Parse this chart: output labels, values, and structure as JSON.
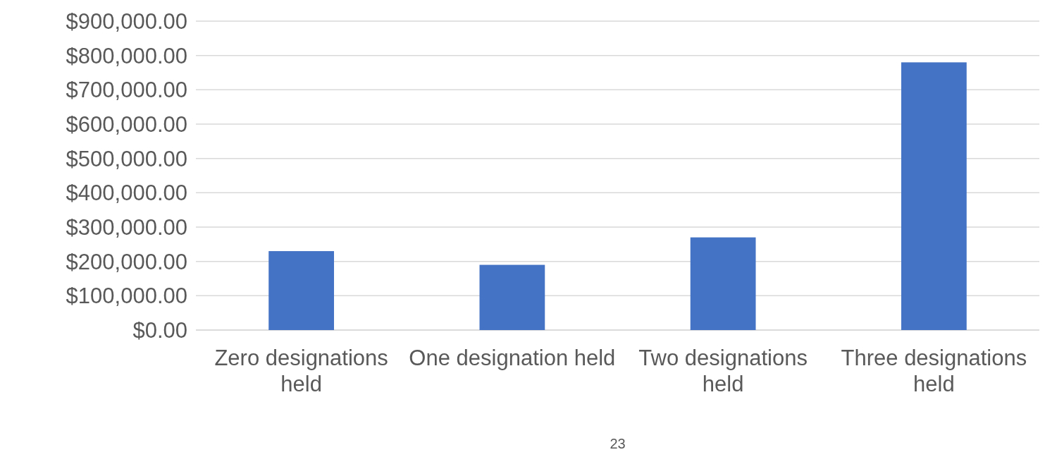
{
  "chart_data": {
    "type": "bar",
    "categories": [
      "Zero designations held",
      "One designation held",
      "Two designations held",
      "Three designations held"
    ],
    "values": [
      230000,
      190000,
      270000,
      780000
    ],
    "color": "#4472c4",
    "ylim": [
      0,
      900000
    ],
    "yticks": [
      {
        "value": 0,
        "label": "$0.00"
      },
      {
        "value": 100000,
        "label": "$100,000.00"
      },
      {
        "value": 200000,
        "label": "$200,000.00"
      },
      {
        "value": 300000,
        "label": "$300,000.00"
      },
      {
        "value": 400000,
        "label": "$400,000.00"
      },
      {
        "value": 500000,
        "label": "$500,000.00"
      },
      {
        "value": 600000,
        "label": "$600,000.00"
      },
      {
        "value": 700000,
        "label": "$700,000.00"
      },
      {
        "value": 800000,
        "label": "$800,000.00"
      },
      {
        "value": 900000,
        "label": "$900,000.00"
      }
    ],
    "grid": true,
    "annotations": [
      "23"
    ]
  }
}
